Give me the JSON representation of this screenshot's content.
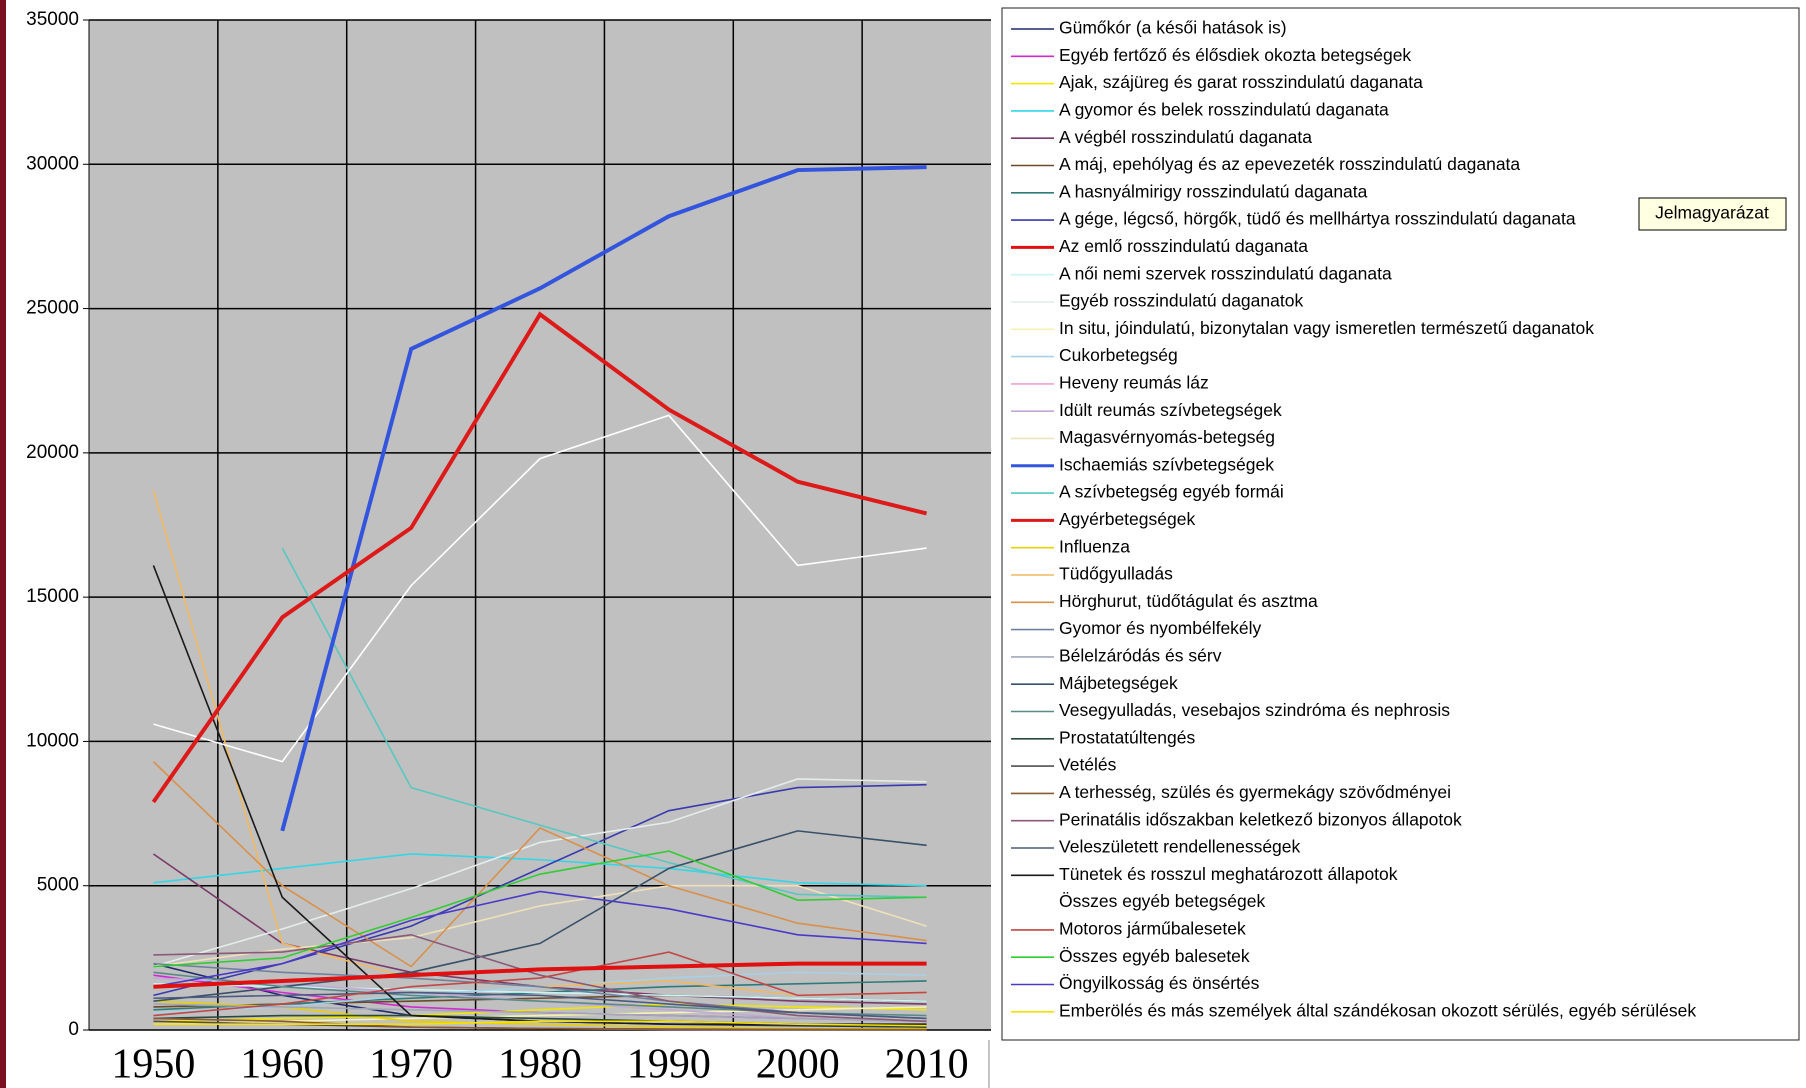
{
  "chart_data": {
    "type": "line",
    "categories": [
      "1950",
      "1960",
      "1970",
      "1980",
      "1990",
      "2000",
      "2010"
    ],
    "ylim": [
      0,
      35000
    ],
    "yticks": [
      0,
      5000,
      10000,
      15000,
      20000,
      25000,
      30000,
      35000
    ],
    "grid": true,
    "legend": "right",
    "tooltip": "Jelmagyarázat",
    "series": [
      {
        "name": "Gümőkór (a késői hatások is)",
        "color": "#1f2a6b",
        "values": [
          2300,
          1200,
          500,
          300,
          200,
          150,
          100
        ]
      },
      {
        "name": "Egyéb fertőző és élősdiek okozta betegségek",
        "color": "#d12ad1",
        "values": [
          1900,
          1300,
          800,
          600,
          500,
          400,
          300
        ]
      },
      {
        "name": "Ajak, szájüreg és garat rosszindulatú daganata",
        "color": "#f2e600",
        "values": [
          300,
          400,
          500,
          700,
          900,
          800,
          700
        ]
      },
      {
        "name": "A gyomor és belek rosszindulatú daganata",
        "color": "#33d6e6",
        "values": [
          5100,
          5600,
          6100,
          5900,
          5600,
          5100,
          5000
        ]
      },
      {
        "name": "A végbél rosszindulatú daganata",
        "color": "#7a3a6a",
        "values": [
          6100,
          3000,
          2000,
          1500,
          1200,
          1000,
          900
        ]
      },
      {
        "name": "A máj, epehólyag és az epevezeték rosszindulatú daganata",
        "color": "#6b4a2a",
        "values": [
          800,
          900,
          1000,
          1100,
          1200,
          1100,
          1000
        ]
      },
      {
        "name": "A hasnyálmirigy rosszindulatú daganata",
        "color": "#2f7a7a",
        "values": [
          700,
          900,
          1100,
          1300,
          1500,
          1600,
          1700
        ]
      },
      {
        "name": "A gége, légcső, hörgők, tüdő és mellhártya rosszindulatú daganata",
        "color": "#3a3ab0",
        "values": [
          1200,
          2300,
          3600,
          5600,
          7600,
          8400,
          8500
        ]
      },
      {
        "name": "Az emlő rosszindulatú daganata",
        "color": "#e01010",
        "values": [
          1500,
          1700,
          1900,
          2100,
          2200,
          2300,
          2300
        ]
      },
      {
        "name": "A női nemi szervek rosszindulatú daganata",
        "color": "#c8f4f4",
        "values": [
          1600,
          1500,
          1400,
          1300,
          1200,
          1100,
          1000
        ]
      },
      {
        "name": "Egyéb rosszindulatú daganatok",
        "color": "#e4ecec",
        "values": [
          2200,
          3500,
          4900,
          6500,
          7200,
          8700,
          8600
        ]
      },
      {
        "name": "In situ, jóindulatú, bizonytalan vagy ismeretlen természetű daganatok",
        "color": "#f6f2b0",
        "values": [
          200,
          300,
          400,
          500,
          600,
          700,
          800
        ]
      },
      {
        "name": "Cukorbetegség",
        "color": "#a8d0e6",
        "values": [
          600,
          800,
          1200,
          1500,
          1800,
          2000,
          1900
        ]
      },
      {
        "name": "Heveny reumás láz",
        "color": "#f0a0d0",
        "values": [
          300,
          200,
          100,
          50,
          20,
          10,
          5
        ]
      },
      {
        "name": "Idült reumás szívbetegségek",
        "color": "#c0a8d8",
        "values": [
          1800,
          1600,
          1300,
          1000,
          700,
          400,
          300
        ]
      },
      {
        "name": "Magasvérnyomás-betegség",
        "color": "#eee0b8",
        "values": [
          2200,
          2800,
          3200,
          4300,
          5000,
          5000,
          3600
        ]
      },
      {
        "name": "Ischaemiás szívbetegségek",
        "color": "#3355dd",
        "values": [
          null,
          6900,
          23600,
          25700,
          28200,
          29800,
          29900
        ]
      },
      {
        "name": "A szívbetegség egyéb formái",
        "color": "#55c8c0",
        "values": [
          null,
          16700,
          8400,
          7100,
          5800,
          4700,
          4600
        ]
      },
      {
        "name": "Agyérbetegségek",
        "color": "#dd1a1a",
        "values": [
          7900,
          14300,
          17400,
          24800,
          21500,
          19000,
          17900
        ]
      },
      {
        "name": "Influenza",
        "color": "#e8d000",
        "values": [
          1000,
          800,
          300,
          200,
          100,
          50,
          50
        ]
      },
      {
        "name": "Tüdőgyulladás",
        "color": "#f2b860",
        "values": [
          18700,
          3000,
          1800,
          1500,
          1700,
          1200,
          1300
        ]
      },
      {
        "name": "Hörghurut, tüdőtágulat és asztma",
        "color": "#d8904a",
        "values": [
          9300,
          5000,
          2200,
          7000,
          5000,
          3700,
          3100
        ]
      },
      {
        "name": "Gyomor és nyombélfekély",
        "color": "#7080a0",
        "values": [
          2300,
          2000,
          1800,
          1500,
          1000,
          600,
          400
        ]
      },
      {
        "name": "Bélelzáródás és sérv",
        "color": "#a0a8b8",
        "values": [
          900,
          800,
          700,
          600,
          500,
          400,
          300
        ]
      },
      {
        "name": "Májbetegségek",
        "color": "#3a5068",
        "values": [
          1000,
          1500,
          2000,
          3000,
          5600,
          6900,
          6400
        ]
      },
      {
        "name": "Vesegyulladás, vesebajos szindróma és nephrosis",
        "color": "#5a8a88",
        "values": [
          2000,
          1500,
          1200,
          1000,
          800,
          600,
          500
        ]
      },
      {
        "name": "Prostatatúltengés",
        "color": "#2a4a40",
        "values": [
          400,
          500,
          500,
          400,
          300,
          200,
          100
        ]
      },
      {
        "name": "Vetélés",
        "color": "#505050",
        "values": [
          300,
          200,
          100,
          50,
          30,
          20,
          10
        ]
      },
      {
        "name": "A terhesség, szülés és gyermekágy szövődményei",
        "color": "#8a5a30",
        "values": [
          400,
          300,
          100,
          50,
          30,
          20,
          10
        ]
      },
      {
        "name": "Perinatális időszakban keletkező bizonyos állapotok",
        "color": "#8a5a78",
        "values": [
          2600,
          2700,
          3300,
          1900,
          1000,
          500,
          300
        ]
      },
      {
        "name": "Veleszületett rendellenességek",
        "color": "#4a5a80",
        "values": [
          1100,
          1200,
          1300,
          1200,
          900,
          600,
          400
        ]
      },
      {
        "name": "Tünetek és rosszul meghatározott állapotok",
        "color": "#1a1a1a",
        "values": [
          16100,
          4600,
          500,
          300,
          200,
          200,
          200
        ]
      },
      {
        "name": "Összes egyéb betegségek",
        "color": "#ffffff",
        "values": [
          10600,
          9300,
          15400,
          19800,
          21300,
          16100,
          16700
        ]
      },
      {
        "name": "Motoros járműbalesetek",
        "color": "#c04848",
        "values": [
          500,
          900,
          1500,
          1800,
          2700,
          1200,
          1300
        ]
      },
      {
        "name": "Összes egyéb balesetek",
        "color": "#33cc33",
        "values": [
          2200,
          2500,
          3900,
          5400,
          6200,
          4500,
          4600
        ]
      },
      {
        "name": "Öngyilkosság és önsértés",
        "color": "#4a3ac8",
        "values": [
          1500,
          2300,
          3800,
          4800,
          4200,
          3300,
          3000
        ]
      },
      {
        "name": "Emberölés és más személyek által szándékosan okozott sérülés, egyéb sérülések",
        "color": "#f5e000",
        "values": [
          200,
          200,
          200,
          300,
          300,
          200,
          150
        ]
      }
    ]
  }
}
